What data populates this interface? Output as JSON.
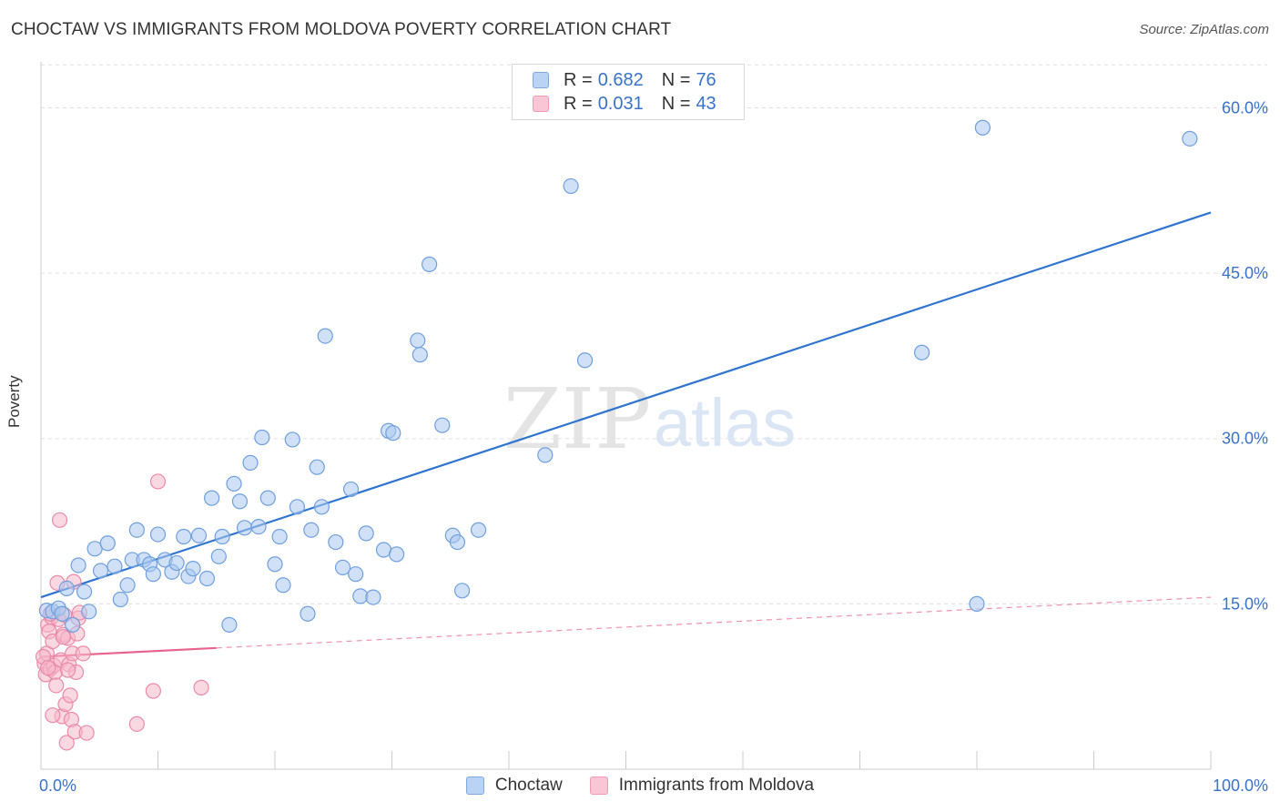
{
  "title": "CHOCTAW VS IMMIGRANTS FROM MOLDOVA POVERTY CORRELATION CHART",
  "source": "Source: ZipAtlas.com",
  "watermark": {
    "zip": "ZIP",
    "atlas": "atlas"
  },
  "legend": {
    "rows": [
      {
        "r_label": "R =",
        "r_value": "0.682",
        "n_label": "N =",
        "n_value": "76"
      },
      {
        "r_label": "R =",
        "r_value": "0.031",
        "n_label": "N =",
        "n_value": "43"
      }
    ]
  },
  "colors": {
    "choctaw_fill": "#a9c8f0",
    "choctaw_stroke": "#6f9fdc",
    "choctaw_line": "#2f74cf",
    "moldova_fill": "#f6b8cb",
    "moldova_stroke": "#e98aa8",
    "moldova_line": "#e8648e",
    "axis_label": "#3a72c8",
    "grid": "#e0e0e0"
  },
  "chart_data": {
    "type": "scatter",
    "title": "CHOCTAW VS IMMIGRANTS FROM MOLDOVA POVERTY CORRELATION CHART",
    "xlabel": "",
    "ylabel": "Poverty",
    "xlim": [
      0,
      100
    ],
    "ylim": [
      0,
      64
    ],
    "x_tick_labels": [
      "0.0%",
      "100.0%"
    ],
    "y_ticks": [
      15,
      30,
      45,
      60
    ],
    "y_tick_labels": [
      "15.0%",
      "30.0%",
      "45.0%",
      "60.0%"
    ],
    "grid": true,
    "series": [
      {
        "name": "Choctaw",
        "r": 0.682,
        "n": 76,
        "trend": {
          "x": [
            0,
            100
          ],
          "y": [
            15.6,
            50.5
          ],
          "style": "solid"
        },
        "points": [
          [
            0.5,
            14.4
          ],
          [
            1.0,
            14.3
          ],
          [
            1.5,
            14.6
          ],
          [
            1.8,
            14.1
          ],
          [
            2.2,
            16.4
          ],
          [
            2.7,
            13.1
          ],
          [
            3.2,
            18.5
          ],
          [
            3.7,
            16.1
          ],
          [
            4.1,
            14.3
          ],
          [
            4.6,
            20.0
          ],
          [
            5.1,
            18.0
          ],
          [
            5.7,
            20.5
          ],
          [
            6.3,
            18.4
          ],
          [
            6.8,
            15.4
          ],
          [
            7.4,
            16.7
          ],
          [
            7.8,
            19.0
          ],
          [
            8.2,
            21.7
          ],
          [
            8.8,
            19.0
          ],
          [
            9.3,
            18.6
          ],
          [
            9.6,
            17.7
          ],
          [
            10.0,
            21.3
          ],
          [
            10.6,
            19.0
          ],
          [
            11.2,
            17.9
          ],
          [
            11.6,
            18.7
          ],
          [
            12.2,
            21.1
          ],
          [
            12.6,
            17.5
          ],
          [
            13.0,
            18.2
          ],
          [
            13.5,
            21.2
          ],
          [
            14.2,
            17.3
          ],
          [
            14.6,
            24.6
          ],
          [
            15.2,
            19.3
          ],
          [
            15.5,
            21.1
          ],
          [
            16.1,
            13.1
          ],
          [
            16.5,
            25.9
          ],
          [
            17.0,
            24.3
          ],
          [
            17.4,
            21.9
          ],
          [
            17.9,
            27.8
          ],
          [
            18.6,
            22.0
          ],
          [
            18.9,
            30.1
          ],
          [
            19.4,
            24.6
          ],
          [
            20.0,
            18.6
          ],
          [
            20.4,
            21.1
          ],
          [
            20.7,
            16.7
          ],
          [
            21.5,
            29.9
          ],
          [
            21.9,
            23.8
          ],
          [
            22.8,
            14.1
          ],
          [
            23.1,
            21.7
          ],
          [
            23.6,
            27.4
          ],
          [
            24.0,
            23.8
          ],
          [
            24.3,
            39.3
          ],
          [
            25.2,
            20.6
          ],
          [
            25.8,
            18.3
          ],
          [
            26.5,
            25.4
          ],
          [
            26.9,
            17.7
          ],
          [
            27.3,
            15.7
          ],
          [
            27.8,
            21.4
          ],
          [
            28.4,
            15.6
          ],
          [
            29.3,
            19.9
          ],
          [
            29.7,
            30.7
          ],
          [
            30.1,
            30.5
          ],
          [
            30.4,
            19.5
          ],
          [
            32.2,
            38.9
          ],
          [
            32.4,
            37.6
          ],
          [
            33.2,
            45.8
          ],
          [
            34.3,
            31.2
          ],
          [
            35.2,
            21.2
          ],
          [
            35.6,
            20.6
          ],
          [
            36.0,
            16.2
          ],
          [
            37.4,
            21.7
          ],
          [
            43.1,
            28.5
          ],
          [
            45.3,
            52.9
          ],
          [
            46.5,
            37.1
          ],
          [
            75.3,
            37.8
          ],
          [
            80.0,
            15.0
          ],
          [
            80.5,
            58.2
          ],
          [
            98.2,
            57.2
          ]
        ]
      },
      {
        "name": "Immigrants from Moldova",
        "r": 0.031,
        "n": 43,
        "trend": {
          "x": [
            0,
            15
          ],
          "y": [
            10.2,
            11.0
          ],
          "style": "solid",
          "extended_x": [
            15,
            100
          ],
          "extended_y": [
            11.0,
            15.6
          ],
          "extended_style": "dashed"
        },
        "points": [
          [
            0.3,
            9.6
          ],
          [
            0.4,
            8.6
          ],
          [
            0.5,
            10.5
          ],
          [
            0.6,
            13.1
          ],
          [
            0.7,
            12.5
          ],
          [
            0.8,
            9.1
          ],
          [
            0.9,
            13.8
          ],
          [
            1.0,
            11.6
          ],
          [
            1.1,
            9.4
          ],
          [
            1.2,
            8.8
          ],
          [
            1.3,
            7.6
          ],
          [
            1.4,
            16.9
          ],
          [
            1.5,
            13.6
          ],
          [
            1.6,
            22.6
          ],
          [
            1.7,
            9.9
          ],
          [
            1.8,
            4.8
          ],
          [
            1.9,
            12.2
          ],
          [
            2.0,
            14.0
          ],
          [
            2.1,
            5.9
          ],
          [
            2.2,
            2.4
          ],
          [
            2.3,
            11.9
          ],
          [
            2.4,
            9.5
          ],
          [
            2.5,
            6.7
          ],
          [
            2.6,
            4.5
          ],
          [
            2.7,
            10.5
          ],
          [
            2.8,
            17.0
          ],
          [
            2.9,
            3.4
          ],
          [
            3.0,
            8.8
          ],
          [
            3.1,
            12.3
          ],
          [
            3.2,
            13.7
          ],
          [
            3.3,
            14.2
          ],
          [
            3.6,
            10.5
          ],
          [
            3.9,
            3.3
          ],
          [
            1.0,
            4.9
          ],
          [
            0.2,
            10.2
          ],
          [
            0.6,
            9.2
          ],
          [
            1.9,
            12.0
          ],
          [
            2.3,
            9.0
          ],
          [
            8.2,
            4.1
          ],
          [
            9.6,
            7.1
          ],
          [
            10.0,
            26.1
          ],
          [
            13.7,
            7.4
          ],
          [
            0.8,
            14.1
          ]
        ]
      }
    ]
  }
}
